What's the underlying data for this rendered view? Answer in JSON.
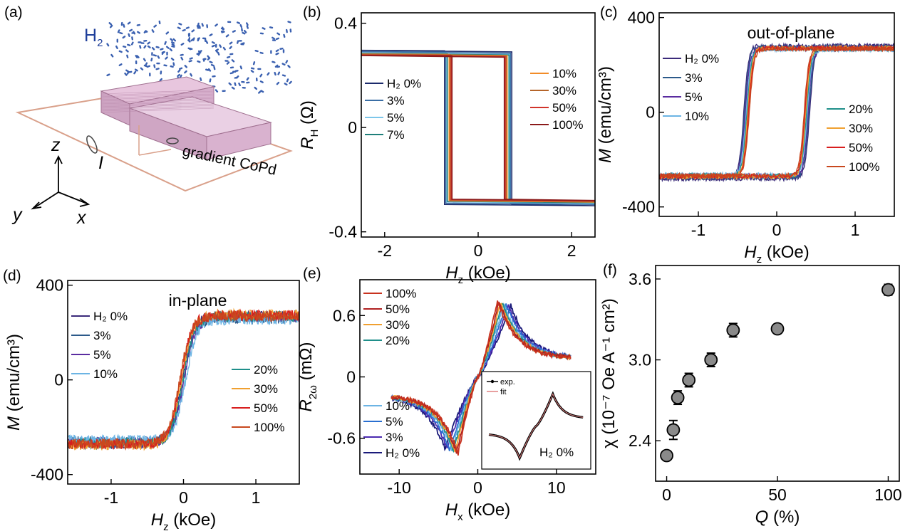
{
  "figure": {
    "panel_a": {
      "label": "(a)",
      "h2_label": "H",
      "h2_sub": "2",
      "z_label": "z",
      "x_label": "x",
      "y_label": "y",
      "current_label": "I",
      "sample_label": "gradient CoPd"
    }
  },
  "chart_data": [
    {
      "id": "b",
      "type": "line",
      "panel_label": "(b)",
      "xlabel": "H",
      "xlabel_sub": "z",
      "xunit": " (kOe)",
      "ylabel": "R",
      "ylabel_sub": "H",
      "yunit": " (Ω)",
      "xlim": [
        -2.5,
        2.5
      ],
      "ylim": [
        -0.42,
        0.44
      ],
      "xticks": [
        -2,
        0,
        2
      ],
      "xtick_labels": [
        "-2",
        "0",
        "2"
      ],
      "yticks": [
        -0.4,
        0,
        0.4
      ],
      "ytick_labels": [
        "-0.4",
        "0",
        "0.4"
      ],
      "legend": [
        {
          "text": "H₂ 0%",
          "color": "#1b2a6b"
        },
        {
          "text": "3%",
          "color": "#3a6ea5"
        },
        {
          "text": "5%",
          "color": "#7cc6ea"
        },
        {
          "text": "7%",
          "color": "#1f7f7a"
        },
        {
          "text": "10%",
          "color": "#f28c28"
        },
        {
          "text": "30%",
          "color": "#b5652a"
        },
        {
          "text": "50%",
          "color": "#d1342b"
        },
        {
          "text": "100%",
          "color": "#8b1a1a"
        }
      ],
      "series": [
        {
          "color": "#1b2a6b",
          "Hc": 0.72,
          "sat": 0.29
        },
        {
          "color": "#3a6ea5",
          "Hc": 0.69,
          "sat": 0.285
        },
        {
          "color": "#7cc6ea",
          "Hc": 0.67,
          "sat": 0.28
        },
        {
          "color": "#1f7f7a",
          "Hc": 0.66,
          "sat": 0.278
        },
        {
          "color": "#f28c28",
          "Hc": 0.62,
          "sat": 0.276
        },
        {
          "color": "#b5652a",
          "Hc": 0.6,
          "sat": 0.274
        },
        {
          "color": "#d1342b",
          "Hc": 0.58,
          "sat": 0.272
        },
        {
          "color": "#8b1a1a",
          "Hc": 0.56,
          "sat": 0.27
        }
      ]
    },
    {
      "id": "c",
      "type": "line",
      "panel_label": "(c)",
      "title": "out-of-plane",
      "xlabel": "H",
      "xlabel_sub": "z",
      "xunit": " (kOe)",
      "ylabel": "M",
      "ylabel_sub": "",
      "yunit": " (emu/cm³)",
      "xlim": [
        -1.5,
        1.5
      ],
      "ylim": [
        -440,
        420
      ],
      "xticks": [
        -1,
        0,
        1
      ],
      "xtick_labels": [
        "-1",
        "0",
        "1"
      ],
      "yticks": [
        -400,
        0,
        400
      ],
      "ytick_labels": [
        "-400",
        "0",
        "400"
      ],
      "legend": [
        {
          "text": "H₂ 0%",
          "color": "#3b2a7a"
        },
        {
          "text": "3%",
          "color": "#2c5a8a"
        },
        {
          "text": "5%",
          "color": "#5a2ca0"
        },
        {
          "text": "10%",
          "color": "#6cb4e4"
        },
        {
          "text": "20%",
          "color": "#1f8f8a"
        },
        {
          "text": "30%",
          "color": "#f0a030"
        },
        {
          "text": "50%",
          "color": "#d81e1e"
        },
        {
          "text": "100%",
          "color": "#c8481e"
        }
      ],
      "series": [
        {
          "color": "#3b2a7a",
          "Hc": 0.42,
          "sat": 280
        },
        {
          "color": "#2c5a8a",
          "Hc": 0.41,
          "sat": 275
        },
        {
          "color": "#5a2ca0",
          "Hc": 0.4,
          "sat": 270
        },
        {
          "color": "#6cb4e4",
          "Hc": 0.39,
          "sat": 265
        },
        {
          "color": "#1f8f8a",
          "Hc": 0.38,
          "sat": 268
        },
        {
          "color": "#f0a030",
          "Hc": 0.37,
          "sat": 272
        },
        {
          "color": "#d81e1e",
          "Hc": 0.36,
          "sat": 270
        },
        {
          "color": "#c8481e",
          "Hc": 0.35,
          "sat": 268
        }
      ]
    },
    {
      "id": "d",
      "type": "line",
      "panel_label": "(d)",
      "title": "in-plane",
      "xlabel": "H",
      "xlabel_sub": "z",
      "xunit": " (kOe)",
      "ylabel": "M",
      "ylabel_sub": "",
      "yunit": " (emu/cm³)",
      "xlim": [
        -1.6,
        1.6
      ],
      "ylim": [
        -440,
        420
      ],
      "xticks": [
        -1,
        0,
        1
      ],
      "xtick_labels": [
        "-1",
        "0",
        "1"
      ],
      "yticks": [
        -400,
        0,
        400
      ],
      "ytick_labels": [
        "-400",
        "0",
        "400"
      ],
      "legend": [
        {
          "text": "H₂ 0%",
          "color": "#3b2a7a"
        },
        {
          "text": "3%",
          "color": "#2c5a8a"
        },
        {
          "text": "5%",
          "color": "#5a2ca0"
        },
        {
          "text": "10%",
          "color": "#6cb4e4"
        },
        {
          "text": "20%",
          "color": "#1f8f8a"
        },
        {
          "text": "30%",
          "color": "#f0a030"
        },
        {
          "text": "50%",
          "color": "#d81e1e"
        },
        {
          "text": "100%",
          "color": "#c8481e"
        }
      ],
      "series": [
        {
          "color": "#3b2a7a",
          "shift": -0.02,
          "sat": 270
        },
        {
          "color": "#2c5a8a",
          "shift": 0.0,
          "sat": 260
        },
        {
          "color": "#5a2ca0",
          "shift": 0.01,
          "sat": 265
        },
        {
          "color": "#6cb4e4",
          "shift": 0.03,
          "sat": 255
        },
        {
          "color": "#1f8f8a",
          "shift": -0.01,
          "sat": 268
        },
        {
          "color": "#f0a030",
          "shift": -0.03,
          "sat": 275
        },
        {
          "color": "#d81e1e",
          "shift": -0.04,
          "sat": 272
        },
        {
          "color": "#c8481e",
          "shift": -0.05,
          "sat": 270
        }
      ]
    },
    {
      "id": "e",
      "type": "line",
      "panel_label": "(e)",
      "xlabel": "H",
      "xlabel_sub": "x",
      "xunit": " (kOe)",
      "ylabel": "R",
      "ylabel_sub": "2ω",
      "yunit": " (mΩ)",
      "xlim": [
        -15,
        15
      ],
      "ylim": [
        -0.95,
        0.95
      ],
      "xticks": [
        -10,
        0,
        10
      ],
      "xtick_labels": [
        "-10",
        "0",
        "10"
      ],
      "yticks": [
        -0.6,
        0,
        0.6
      ],
      "ytick_labels": [
        "-0.6",
        "0",
        "0.6"
      ],
      "legend": [
        {
          "text": "100%",
          "color": "#c8321e"
        },
        {
          "text": "50%",
          "color": "#b02020"
        },
        {
          "text": "30%",
          "color": "#f0a030"
        },
        {
          "text": "20%",
          "color": "#1f8f8a"
        },
        {
          "text": "10%",
          "color": "#6cb4e4"
        },
        {
          "text": "5%",
          "color": "#2a6fd0"
        },
        {
          "text": "3%",
          "color": "#4a2ab0"
        },
        {
          "text": "H₂ 0%",
          "color": "#1a1a7a"
        }
      ],
      "series": [
        {
          "color": "#1a1a7a",
          "peak_x": 4.2,
          "amp": 0.7
        },
        {
          "color": "#4a2ab0",
          "peak_x": 3.9,
          "amp": 0.7
        },
        {
          "color": "#2a6fd0",
          "peak_x": 3.6,
          "amp": 0.71
        },
        {
          "color": "#6cb4e4",
          "peak_x": 3.3,
          "amp": 0.71
        },
        {
          "color": "#1f8f8a",
          "peak_x": 3.1,
          "amp": 0.72
        },
        {
          "color": "#f0a030",
          "peak_x": 2.9,
          "amp": 0.73
        },
        {
          "color": "#b02020",
          "peak_x": 2.7,
          "amp": 0.74
        },
        {
          "color": "#c8321e",
          "peak_x": 2.5,
          "amp": 0.75
        }
      ],
      "inset": {
        "legend_exp": "exp.",
        "legend_fit": "fit",
        "label": "H₂ 0%"
      }
    },
    {
      "id": "f",
      "type": "scatter",
      "panel_label": "(f)",
      "xlabel": "Q",
      "xlabel_sub": "",
      "xunit": " (%)",
      "ylabel_html": "χ (10⁻⁷ Oe A⁻¹ cm²)",
      "xlim": [
        -5,
        105
      ],
      "ylim": [
        2.1,
        3.7
      ],
      "xticks": [
        0,
        50,
        100
      ],
      "xtick_labels": [
        "0",
        "50",
        "100"
      ],
      "yticks": [
        2.4,
        3.0,
        3.6
      ],
      "ytick_labels": [
        "2.4",
        "3.0",
        "3.6"
      ],
      "x": [
        0,
        3,
        5,
        10,
        20,
        30,
        50,
        100
      ],
      "y": [
        2.29,
        2.48,
        2.72,
        2.85,
        3.0,
        3.22,
        3.23,
        3.52
      ],
      "yerr": [
        0.02,
        0.07,
        0.05,
        0.05,
        0.05,
        0.05,
        0.03,
        0.04
      ]
    }
  ]
}
